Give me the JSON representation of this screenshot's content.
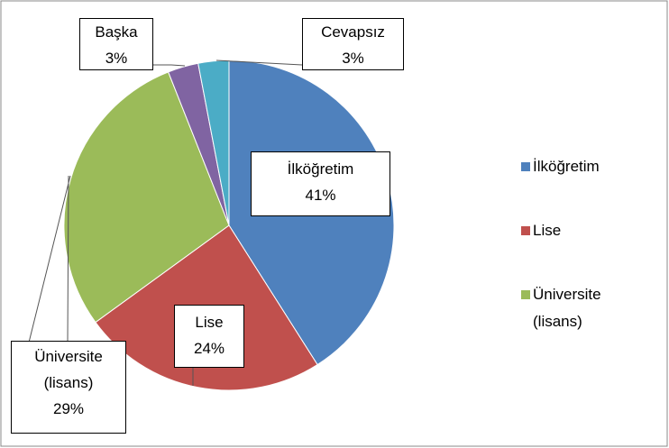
{
  "chart_data": {
    "type": "pie",
    "categories": [
      "İlköğretim",
      "Lise",
      "Üniversite (lisans)",
      "Başka",
      "Cevapsız"
    ],
    "values": [
      41,
      24,
      29,
      3,
      3
    ],
    "value_labels": [
      "41%",
      "24%",
      "29%",
      "3%",
      "3%"
    ],
    "colors": [
      "#4f81bd",
      "#c0504d",
      "#9bbb59",
      "#8064a2",
      "#4bacc6"
    ]
  }
}
